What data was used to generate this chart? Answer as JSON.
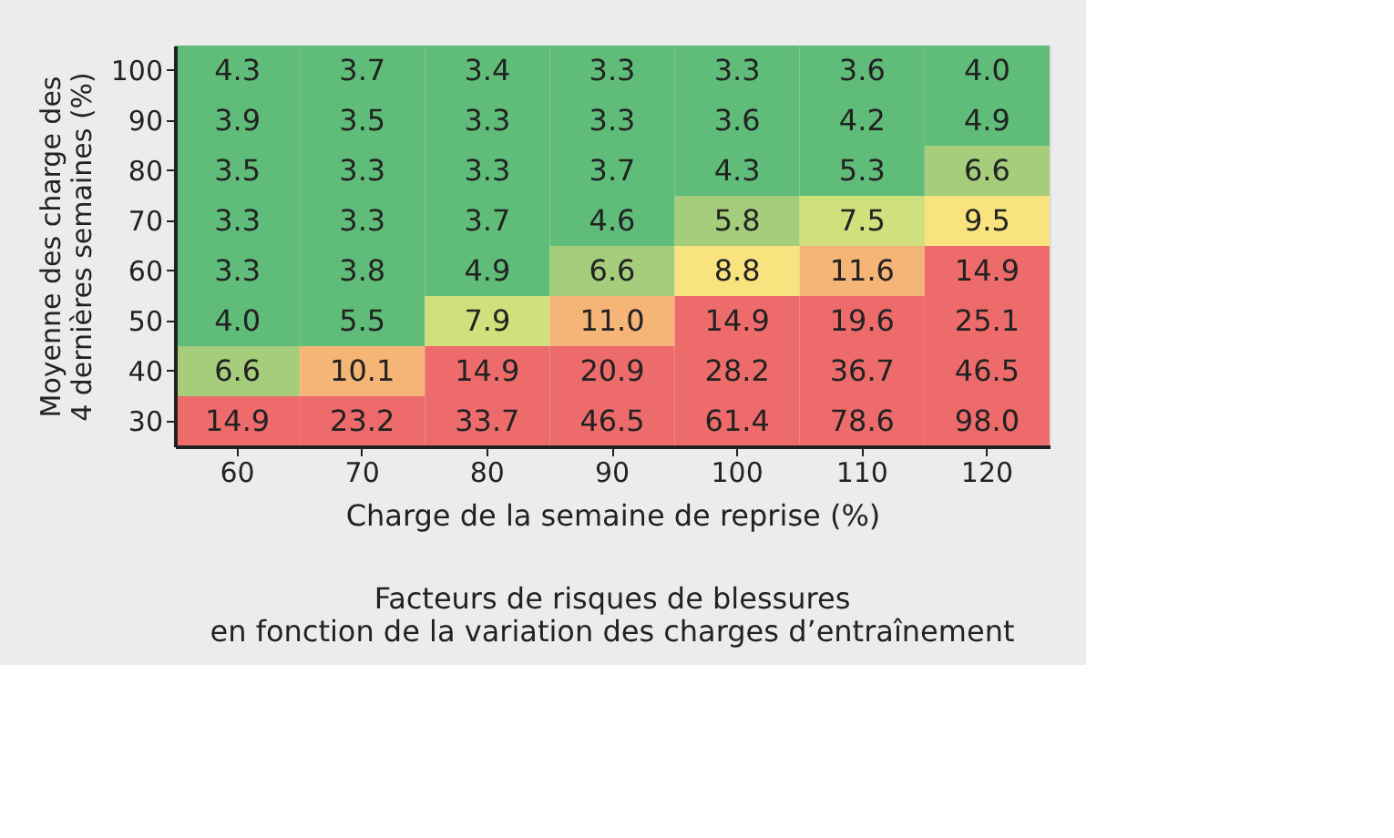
{
  "chart_data": {
    "type": "heatmap",
    "title": "Facteurs de risques de blessures\nen fonction de la variation des charges d’entraînement",
    "xlabel": "Charge de la semaine de reprise (%)",
    "ylabel": "Moyenne des charge des\n4 dernières semaines (%)",
    "categories": [
      "60",
      "70",
      "80",
      "90",
      "100",
      "110",
      "120"
    ],
    "y_categories": [
      "100",
      "90",
      "80",
      "70",
      "60",
      "50",
      "40",
      "30"
    ],
    "cells": [
      [
        4.3,
        3.7,
        3.4,
        3.3,
        3.3,
        3.6,
        4.0
      ],
      [
        3.9,
        3.5,
        3.3,
        3.3,
        3.6,
        4.2,
        4.9
      ],
      [
        3.5,
        3.3,
        3.3,
        3.7,
        4.3,
        5.3,
        6.6
      ],
      [
        3.3,
        3.3,
        3.7,
        4.6,
        5.8,
        7.5,
        9.5
      ],
      [
        3.3,
        3.8,
        4.9,
        6.6,
        8.8,
        11.6,
        14.9
      ],
      [
        4.0,
        5.5,
        7.9,
        11.0,
        14.9,
        19.6,
        25.1
      ],
      [
        6.6,
        10.1,
        14.9,
        20.9,
        28.2,
        36.7,
        46.5
      ],
      [
        14.9,
        23.2,
        33.7,
        46.5,
        61.4,
        78.6,
        98.0
      ]
    ],
    "colors": [
      [
        "#60bd79",
        "#60bd79",
        "#60bd79",
        "#60bd79",
        "#60bd79",
        "#60bd79",
        "#60bd79"
      ],
      [
        "#60bd79",
        "#60bd79",
        "#60bd79",
        "#60bd79",
        "#60bd79",
        "#60bd79",
        "#60bd79"
      ],
      [
        "#60bd79",
        "#60bd79",
        "#60bd79",
        "#60bd79",
        "#60bd79",
        "#60bd79",
        "#a5cd7b"
      ],
      [
        "#60bd79",
        "#60bd79",
        "#60bd79",
        "#60bd79",
        "#a5cd7b",
        "#cfe07c",
        "#f9e37f"
      ],
      [
        "#60bd79",
        "#60bd79",
        "#60bd79",
        "#a5cd7b",
        "#f9e37f",
        "#f5b576",
        "#ee6b6b"
      ],
      [
        "#60bd79",
        "#60bd79",
        "#cfe07c",
        "#f5b576",
        "#ee6b6b",
        "#ee6b6b",
        "#ee6b6b"
      ],
      [
        "#a5cd7b",
        "#f5b576",
        "#ee6b6b",
        "#ee6b6b",
        "#ee6b6b",
        "#ee6b6b",
        "#ee6b6b"
      ],
      [
        "#ee6b6b",
        "#ee6b6b",
        "#ee6b6b",
        "#ee6b6b",
        "#ee6b6b",
        "#ee6b6b",
        "#ee6b6b"
      ]
    ],
    "data_labels": true,
    "cell_labels": [
      [
        "4.3",
        "3.7",
        "3.4",
        "3.3",
        "3.3",
        "3.6",
        "4.0"
      ],
      [
        "3.9",
        "3.5",
        "3.3",
        "3.3",
        "3.6",
        "4.2",
        "4.9"
      ],
      [
        "3.5",
        "3.3",
        "3.3",
        "3.7",
        "4.3",
        "5.3",
        "6.6"
      ],
      [
        "3.3",
        "3.3",
        "3.7",
        "4.6",
        "5.8",
        "7.5",
        "9.5"
      ],
      [
        "3.3",
        "3.8",
        "4.9",
        "6.6",
        "8.8",
        "11.6",
        "14.9"
      ],
      [
        "4.0",
        "5.5",
        "7.9",
        "11.0",
        "14.9",
        "19.6",
        "25.1"
      ],
      [
        "6.6",
        "10.1",
        "14.9",
        "20.9",
        "28.2",
        "36.7",
        "46.5"
      ],
      [
        "14.9",
        "23.2",
        "33.7",
        "46.5",
        "61.4",
        "78.6",
        "98.0"
      ]
    ],
    "grid": false
  }
}
